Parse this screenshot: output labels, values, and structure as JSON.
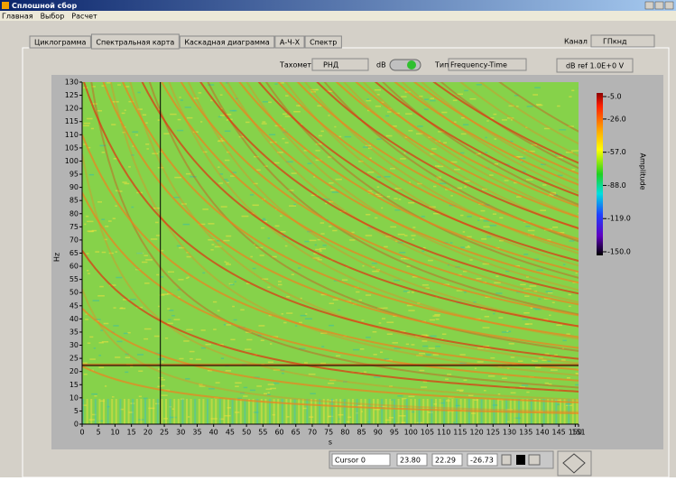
{
  "window": {
    "title": "Сплошной сбор"
  },
  "menu": [
    "Главная",
    "Выбор",
    "Расчет"
  ],
  "tabs": [
    "Циклограмма",
    "Спектральная карта",
    "Каскадная диаграмма",
    "А-Ч-Х",
    "Спектр"
  ],
  "controls": {
    "channel_label": "Канал",
    "channel_value": "ГПкнд",
    "tach_label": "Тахометр",
    "tach_value": "РНД",
    "db_label": "dB",
    "type_label": "Тип",
    "type_value": "Frequency-Time",
    "db_ref": "dB ref 1.0E+0 V"
  },
  "chart_data": {
    "type": "heatmap",
    "x_label": "s",
    "y_label": "Hz",
    "xlim": [
      0,
      151
    ],
    "ylim": [
      0,
      130
    ],
    "xticks": [
      0,
      5,
      10,
      15,
      20,
      25,
      30,
      35,
      40,
      45,
      50,
      55,
      60,
      65,
      70,
      75,
      80,
      85,
      90,
      95,
      100,
      105,
      110,
      115,
      120,
      125,
      130,
      135,
      140,
      145,
      150,
      151
    ],
    "yticks": [
      0,
      5,
      10,
      15,
      20,
      25,
      30,
      35,
      40,
      45,
      50,
      55,
      60,
      65,
      70,
      75,
      80,
      85,
      90,
      95,
      100,
      105,
      110,
      115,
      120,
      125,
      130
    ],
    "colorbar": {
      "label": "Amplitude",
      "zlim": [
        -150,
        -5
      ],
      "ticks": [
        {
          "value": -5,
          "label": "-5.0"
        },
        {
          "value": -26,
          "label": "-26.0"
        },
        {
          "value": -57,
          "label": "-57.0"
        },
        {
          "value": -88,
          "label": "-88.0"
        },
        {
          "value": -119,
          "label": "-119.0"
        },
        {
          "value": -150,
          "label": "-150.0"
        }
      ]
    },
    "cursor": {
      "name": "Cursor 0",
      "x": {
        "value": 23.8,
        "label": "23.80"
      },
      "y": 22.29,
      "z": -26.73
    }
  }
}
